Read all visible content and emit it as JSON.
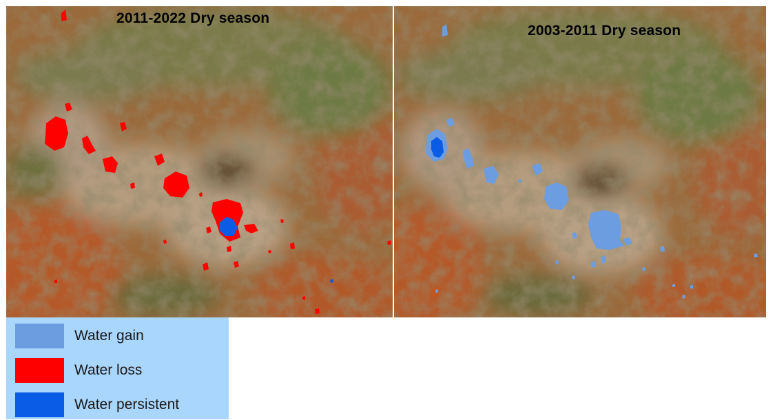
{
  "panels": [
    {
      "title": "2011-2022 Dry season"
    },
    {
      "title": "2003-2011 Dry season"
    }
  ],
  "legend": {
    "items": [
      {
        "label": "Water gain",
        "color": "#6c9de0"
      },
      {
        "label": "Water loss",
        "color": "#ff0000"
      },
      {
        "label": "Water persistent",
        "color": "#0a5ce6"
      }
    ]
  },
  "colors": {
    "terrain_base": "#9a6a3c",
    "terrain_red": "#b45a2a",
    "terrain_green": "#6e7a45",
    "terrain_pale": "#b59c7e",
    "terrain_dark": "#5e4a2c"
  }
}
